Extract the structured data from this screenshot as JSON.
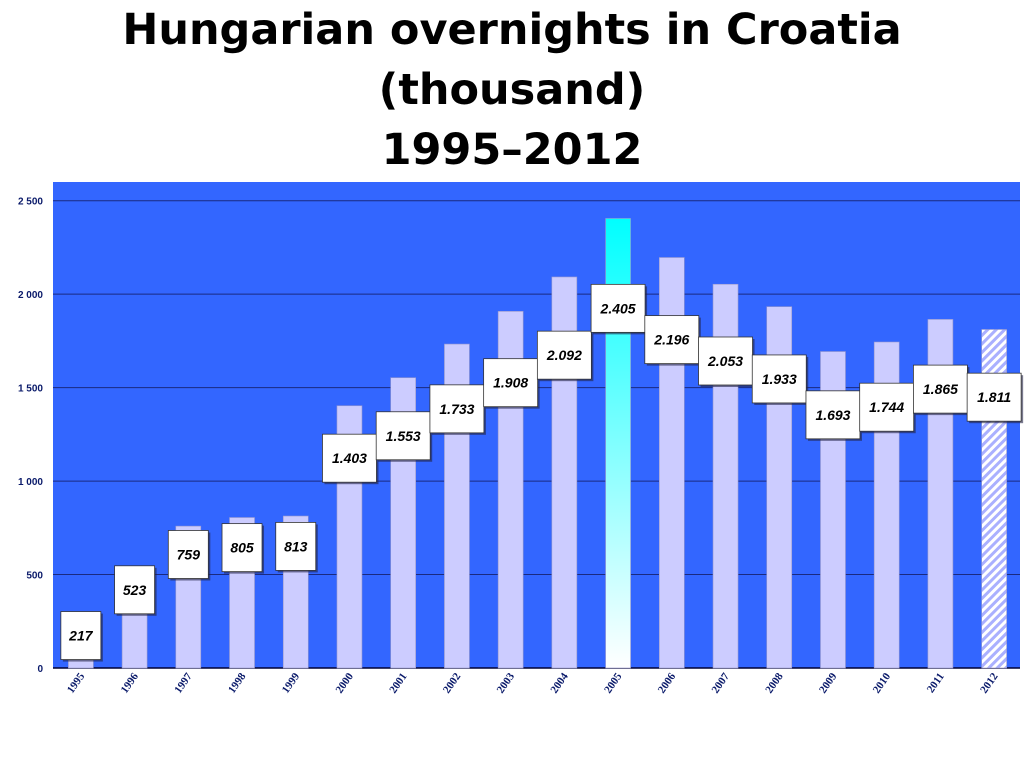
{
  "title_lines": [
    "Hungarian overnights in Croatia",
    "(thousand)",
    "1995–2012"
  ],
  "colors": {
    "plot_background": "#3366ff",
    "bar_fill": "#ccccff",
    "highlight_bar_top": "#00ffff",
    "highlight_bar_bottom": "#ffffff",
    "hatched_bar": "#aab0ff",
    "gridline": "#1a2a80",
    "axis_text": "#0a1a6a"
  },
  "chart_data": {
    "type": "bar",
    "title": "Hungarian overnights in Croatia (thousand) 1995–2012",
    "categories": [
      "1995",
      "1996",
      "1997",
      "1998",
      "1999",
      "2000",
      "2001",
      "2002",
      "2003",
      "2004",
      "2005",
      "2006",
      "2007",
      "2008",
      "2009",
      "2010",
      "2011",
      "2012"
    ],
    "values": [
      217,
      523,
      759,
      805,
      813,
      1403,
      1553,
      1733,
      1908,
      2092,
      2405,
      2196,
      2053,
      1933,
      1693,
      1744,
      1865,
      1811
    ],
    "data_labels": [
      "217",
      "523",
      "759",
      "805",
      "813",
      "1.403",
      "1.553",
      "1.733",
      "1.908",
      "2.092",
      "2.405",
      "2.196",
      "2.053",
      "1.933",
      "1.693",
      "1.744",
      "1.865",
      "1.811"
    ],
    "y_ticks": [
      0,
      500,
      1000,
      1500,
      2000,
      2500
    ],
    "y_tick_labels": [
      "0",
      "500",
      "1 000",
      "1 500",
      "2 000",
      "2 500"
    ],
    "ylim": [
      0,
      2600
    ],
    "grid": true,
    "highlighted_category": "2005",
    "hatched_category": "2012",
    "xlabel": "",
    "ylabel": ""
  }
}
